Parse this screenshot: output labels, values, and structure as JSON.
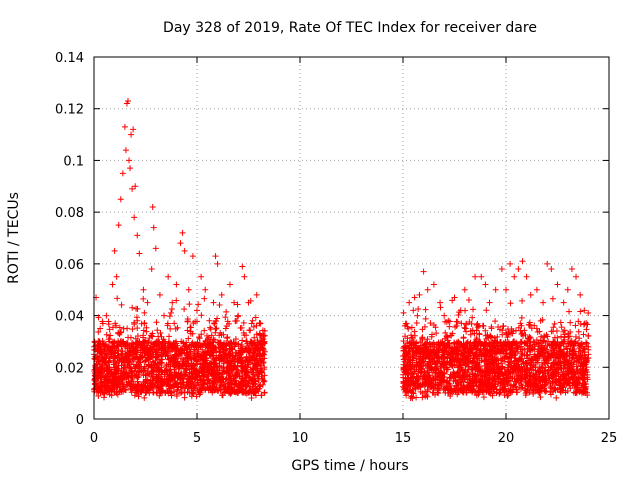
{
  "chart_data": {
    "type": "scatter",
    "title": "Day 328 of 2019, Rate Of TEC Index for receiver dare",
    "xlabel": "GPS time / hours",
    "ylabel": "ROTI / TECUs",
    "xlim": [
      0,
      25
    ],
    "ylim": [
      0,
      0.14
    ],
    "x_ticks": [
      0,
      5,
      10,
      15,
      20,
      25
    ],
    "y_ticks": [
      0,
      0.02,
      0.04,
      0.06,
      0.08,
      0.1,
      0.12,
      0.14
    ],
    "x_tick_labels": [
      "0",
      "5",
      "10",
      "15",
      "20",
      "25"
    ],
    "y_tick_labels": [
      "0",
      "0.02",
      "0.04",
      "0.06",
      "0.08",
      "0.1",
      "0.12",
      "0.14"
    ],
    "grid": true,
    "marker": "+",
    "color": "#ff0000",
    "series": [
      {
        "name": "ROTI",
        "segments": [
          {
            "x_start": 0.0,
            "x_end": 8.3
          },
          {
            "x_start": 15.0,
            "x_end": 24.0
          }
        ],
        "points": [
          [
            0.0,
            0.025
          ],
          [
            0.1,
            0.047
          ],
          [
            0.2,
            0.018
          ],
          [
            0.3,
            0.035
          ],
          [
            0.5,
            0.022
          ],
          [
            0.6,
            0.04
          ],
          [
            0.8,
            0.015
          ],
          [
            0.9,
            0.052
          ],
          [
            1.0,
            0.065
          ],
          [
            1.1,
            0.055
          ],
          [
            1.2,
            0.075
          ],
          [
            1.3,
            0.085
          ],
          [
            1.4,
            0.095
          ],
          [
            1.5,
            0.113
          ],
          [
            1.55,
            0.104
          ],
          [
            1.6,
            0.122
          ],
          [
            1.65,
            0.123
          ],
          [
            1.7,
            0.1
          ],
          [
            1.75,
            0.097
          ],
          [
            1.8,
            0.11
          ],
          [
            1.85,
            0.089
          ],
          [
            1.9,
            0.112
          ],
          [
            1.95,
            0.078
          ],
          [
            2.0,
            0.09
          ],
          [
            2.1,
            0.071
          ],
          [
            2.2,
            0.064
          ],
          [
            2.4,
            0.05
          ],
          [
            2.6,
            0.045
          ],
          [
            2.8,
            0.058
          ],
          [
            2.85,
            0.082
          ],
          [
            2.9,
            0.074
          ],
          [
            3.0,
            0.066
          ],
          [
            3.2,
            0.048
          ],
          [
            3.4,
            0.04
          ],
          [
            3.6,
            0.055
          ],
          [
            3.8,
            0.045
          ],
          [
            4.0,
            0.052
          ],
          [
            4.2,
            0.068
          ],
          [
            4.3,
            0.072
          ],
          [
            4.4,
            0.065
          ],
          [
            4.6,
            0.05
          ],
          [
            4.8,
            0.063
          ],
          [
            5.0,
            0.042
          ],
          [
            5.2,
            0.055
          ],
          [
            5.4,
            0.05
          ],
          [
            5.6,
            0.038
          ],
          [
            5.8,
            0.045
          ],
          [
            5.9,
            0.063
          ],
          [
            6.0,
            0.06
          ],
          [
            6.2,
            0.048
          ],
          [
            6.4,
            0.035
          ],
          [
            6.6,
            0.052
          ],
          [
            6.8,
            0.045
          ],
          [
            7.0,
            0.04
          ],
          [
            7.2,
            0.059
          ],
          [
            7.3,
            0.055
          ],
          [
            7.5,
            0.045
          ],
          [
            7.7,
            0.038
          ],
          [
            7.9,
            0.048
          ],
          [
            8.1,
            0.03
          ],
          [
            15.1,
            0.032
          ],
          [
            15.3,
            0.045
          ],
          [
            15.5,
            0.042
          ],
          [
            15.8,
            0.048
          ],
          [
            16.0,
            0.057
          ],
          [
            16.2,
            0.05
          ],
          [
            16.5,
            0.052
          ],
          [
            16.8,
            0.045
          ],
          [
            17.0,
            0.04
          ],
          [
            17.2,
            0.038
          ],
          [
            17.5,
            0.047
          ],
          [
            17.8,
            0.042
          ],
          [
            18.0,
            0.05
          ],
          [
            18.2,
            0.046
          ],
          [
            18.5,
            0.055
          ],
          [
            18.8,
            0.055
          ],
          [
            19.0,
            0.052
          ],
          [
            19.2,
            0.045
          ],
          [
            19.5,
            0.05
          ],
          [
            19.8,
            0.058
          ],
          [
            20.0,
            0.05
          ],
          [
            20.2,
            0.06
          ],
          [
            20.4,
            0.055
          ],
          [
            20.6,
            0.058
          ],
          [
            20.8,
            0.061
          ],
          [
            21.0,
            0.055
          ],
          [
            21.2,
            0.048
          ],
          [
            21.5,
            0.05
          ],
          [
            21.8,
            0.045
          ],
          [
            22.0,
            0.06
          ],
          [
            22.2,
            0.058
          ],
          [
            22.5,
            0.052
          ],
          [
            22.8,
            0.045
          ],
          [
            23.0,
            0.05
          ],
          [
            23.2,
            0.058
          ],
          [
            23.4,
            0.055
          ],
          [
            23.6,
            0.048
          ],
          [
            23.8,
            0.042
          ],
          [
            24.0,
            0.025
          ]
        ]
      }
    ]
  }
}
